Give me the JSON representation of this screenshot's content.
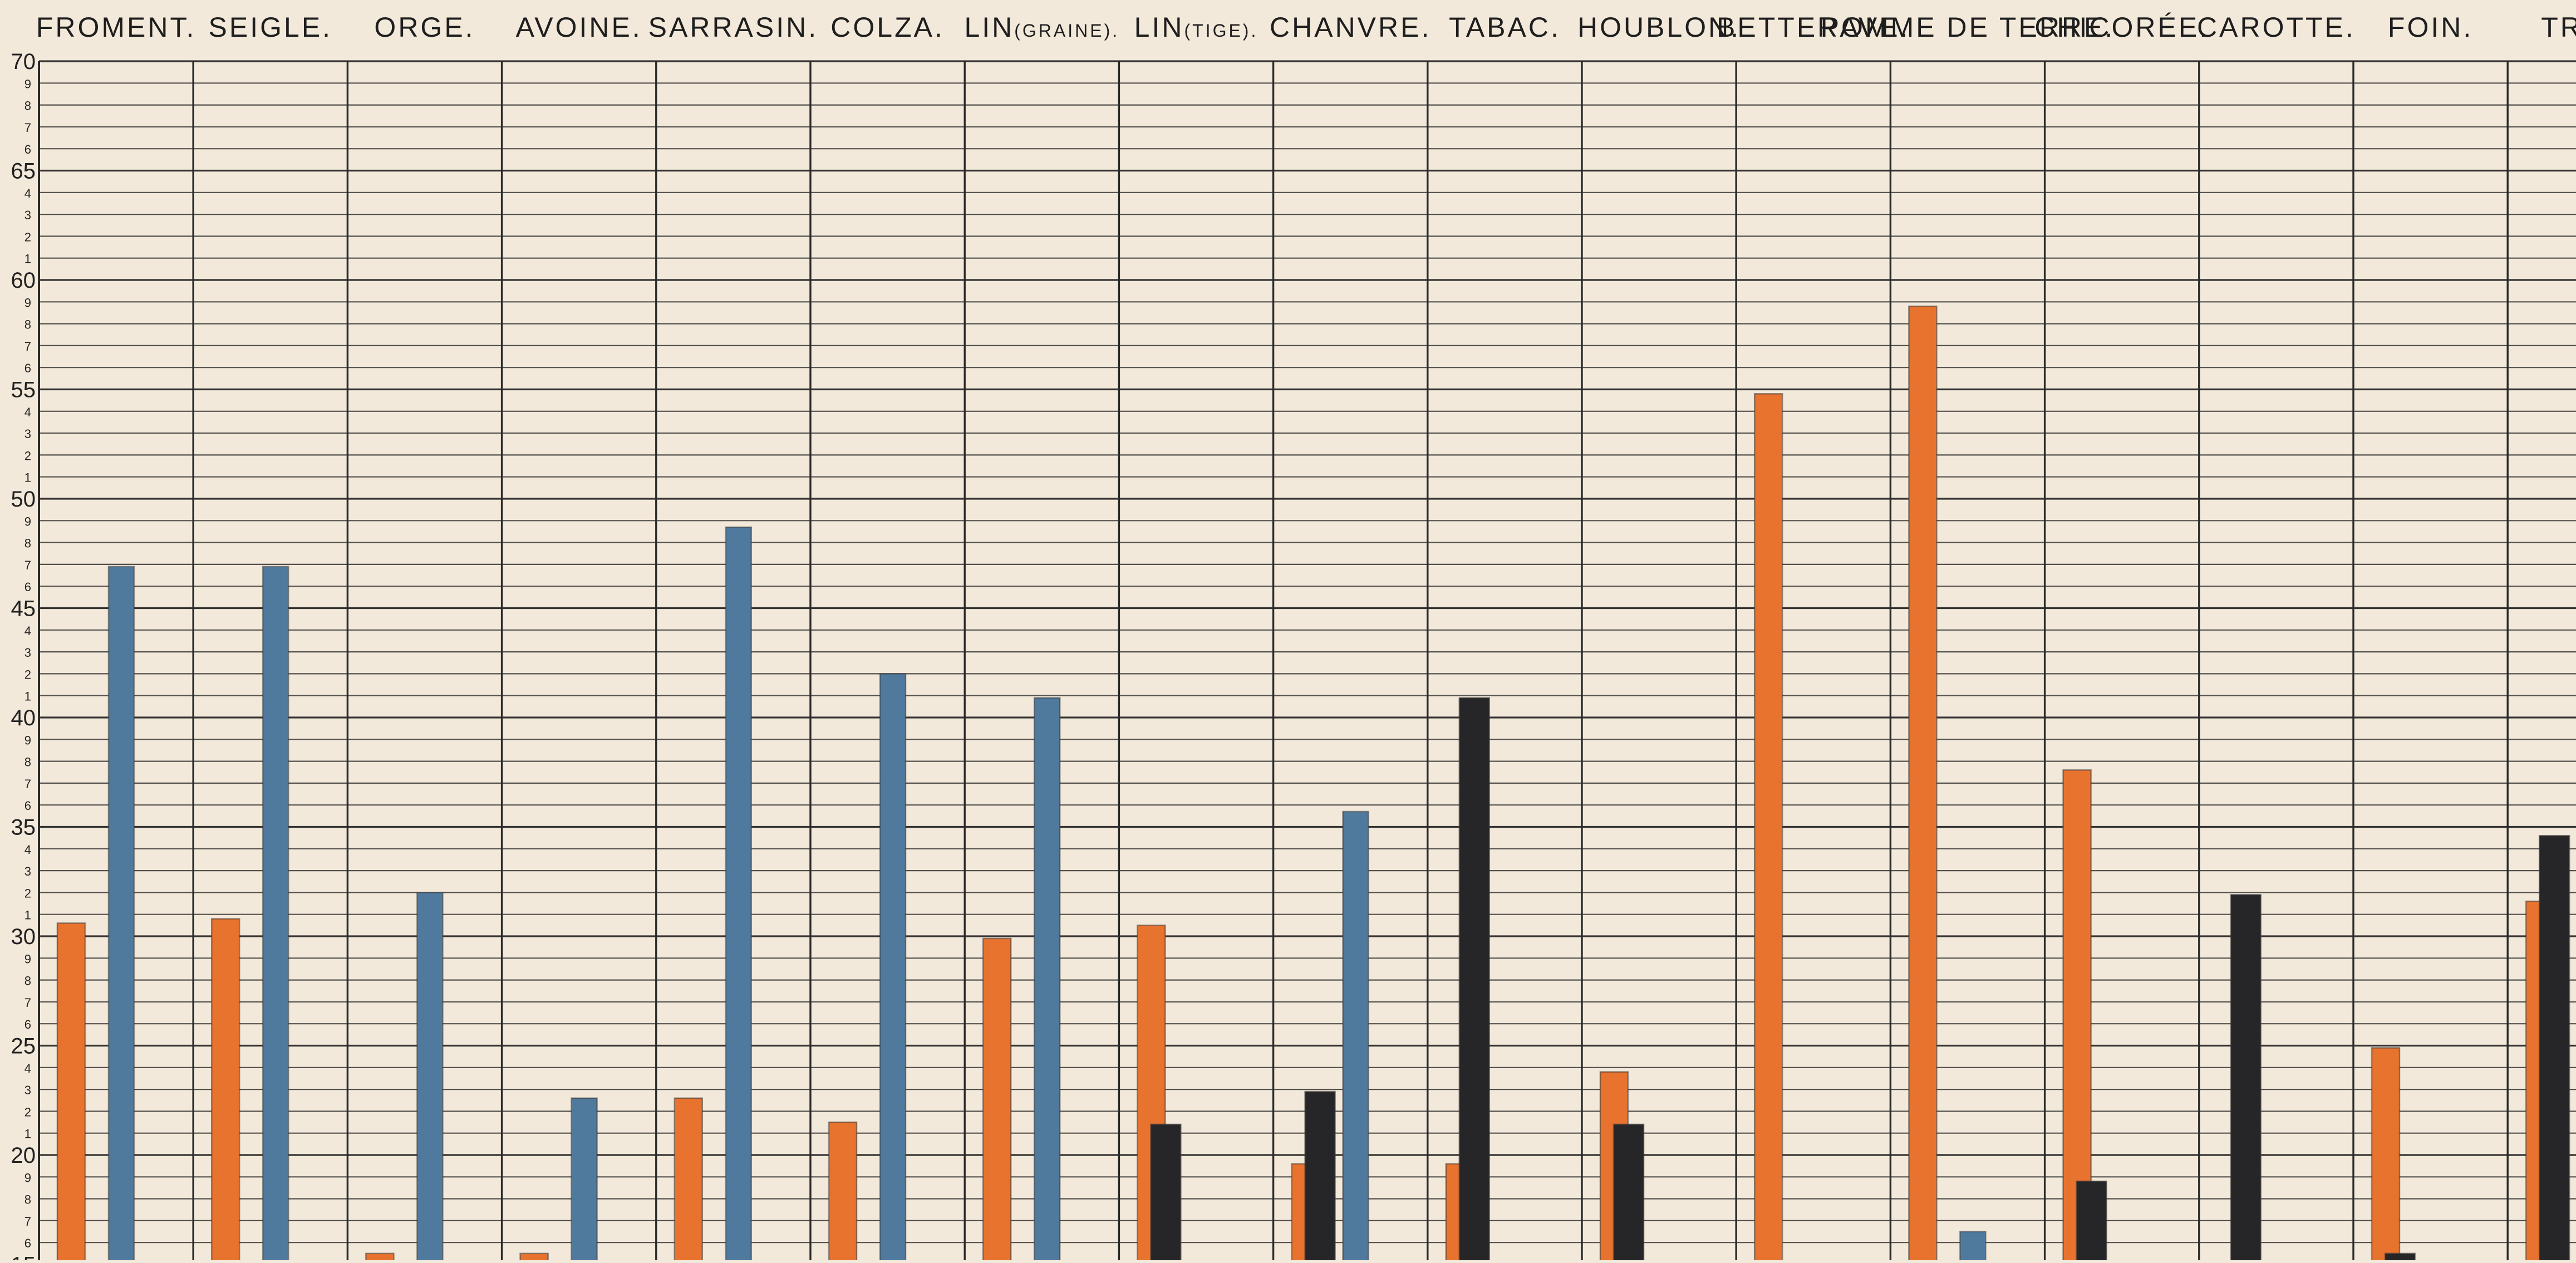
{
  "chart_data": {
    "type": "bar",
    "title": "",
    "xlabel": "",
    "ylabel": "",
    "ylim": [
      15,
      70
    ],
    "y_major_ticks": [
      20,
      25,
      30,
      35,
      40,
      45,
      50,
      55,
      60,
      65,
      70
    ],
    "y_minor_tick_labels": [
      "1",
      "2",
      "3",
      "4",
      "5",
      "6",
      "7",
      "8",
      "9"
    ],
    "grid": true,
    "legend": "none",
    "colors": {
      "blue": "#4f7a9e",
      "orange": "#e8732e",
      "black": "#262628",
      "grid": "#2a2a2a",
      "paper": "#f3e9da"
    },
    "categories": [
      {
        "label": "FROMENT.",
        "main": "FROMENT.",
        "small": ""
      },
      {
        "label": "SEIGLE.",
        "main": "SEIGLE.",
        "small": ""
      },
      {
        "label": "ORGE.",
        "main": "ORGE.",
        "small": ""
      },
      {
        "label": "AVOINE.",
        "main": "AVOINE.",
        "small": ""
      },
      {
        "label": "SARRASIN.",
        "main": "SARRASIN.",
        "small": ""
      },
      {
        "label": "COLZA.",
        "main": "COLZA.",
        "small": ""
      },
      {
        "label": "LIN(GRAINE).",
        "main": "LIN",
        "small": "(GRAINE)."
      },
      {
        "label": "LIN(TIGE).",
        "main": "LIN",
        "small": "(TIGE)."
      },
      {
        "label": "CHANVRE.",
        "main": "CHANVRE.",
        "small": ""
      },
      {
        "label": "TABAC.",
        "main": "TABAC.",
        "small": ""
      },
      {
        "label": "HOUBLON.",
        "main": "HOUBLON.",
        "small": ""
      },
      {
        "label": "BETTERAVE.",
        "main": "BETTERAVE.",
        "small": ""
      },
      {
        "label": "POMME DE TERRE.",
        "main": "POMME DE TERRE.",
        "small": ""
      },
      {
        "label": "CHICORÉE.",
        "main": "CHICORÉE.",
        "small": ""
      },
      {
        "label": "CAROTTE.",
        "main": "CAROTTE.",
        "small": ""
      },
      {
        "label": "FOIN.",
        "main": "FOIN.",
        "small": ""
      },
      {
        "label": "TR",
        "main": "TR",
        "small": ""
      }
    ],
    "bars": [
      {
        "category": 0,
        "slot": 0,
        "color": "orange",
        "value": 30.6
      },
      {
        "category": 0,
        "slot": 2,
        "color": "blue",
        "value": 46.9
      },
      {
        "category": 1,
        "slot": 0,
        "color": "orange",
        "value": 30.8
      },
      {
        "category": 1,
        "slot": 2,
        "color": "blue",
        "value": 46.9
      },
      {
        "category": 2,
        "slot": 0,
        "color": "orange",
        "value": 15.5
      },
      {
        "category": 2,
        "slot": 2,
        "color": "blue",
        "value": 32.0
      },
      {
        "category": 3,
        "slot": 0,
        "color": "orange",
        "value": 15.5
      },
      {
        "category": 3,
        "slot": 2,
        "color": "blue",
        "value": 22.6
      },
      {
        "category": 4,
        "slot": 0,
        "color": "orange",
        "value": 22.6
      },
      {
        "category": 4,
        "slot": 2,
        "color": "blue",
        "value": 48.7
      },
      {
        "category": 5,
        "slot": 0,
        "color": "orange",
        "value": 21.5
      },
      {
        "category": 5,
        "slot": 2,
        "color": "blue",
        "value": 42.0
      },
      {
        "category": 6,
        "slot": 0,
        "color": "orange",
        "value": 29.9
      },
      {
        "category": 6,
        "slot": 2,
        "color": "blue",
        "value": 40.9
      },
      {
        "category": 7,
        "slot": 0,
        "color": "orange",
        "value": 30.5
      },
      {
        "category": 7,
        "slot": 1,
        "color": "black",
        "value": 21.4
      },
      {
        "category": 8,
        "slot": 0,
        "color": "orange",
        "value": 19.6
      },
      {
        "category": 8,
        "slot": 1,
        "color": "black",
        "value": 22.9
      },
      {
        "category": 8,
        "slot": 2,
        "color": "blue",
        "value": 35.7
      },
      {
        "category": 9,
        "slot": 0,
        "color": "orange",
        "value": 19.6
      },
      {
        "category": 9,
        "slot": 1,
        "color": "black",
        "value": 40.9
      },
      {
        "category": 10,
        "slot": 0,
        "color": "orange",
        "value": 23.8
      },
      {
        "category": 10,
        "slot": 1,
        "color": "black",
        "value": 21.4
      },
      {
        "category": 11,
        "slot": 0,
        "color": "orange",
        "value": 54.8
      },
      {
        "category": 12,
        "slot": 0,
        "color": "orange",
        "value": 58.8
      },
      {
        "category": 12,
        "slot": 2,
        "color": "blue",
        "value": 16.5
      },
      {
        "category": 13,
        "slot": 0,
        "color": "orange",
        "value": 37.6
      },
      {
        "category": 13,
        "slot": 1,
        "color": "black",
        "value": 18.8
      },
      {
        "category": 14,
        "slot": 1,
        "color": "black",
        "value": 31.9
      },
      {
        "category": 15,
        "slot": 0,
        "color": "orange",
        "value": 24.9
      },
      {
        "category": 15,
        "slot": 1,
        "color": "black",
        "value": 15.5
      },
      {
        "category": 16,
        "slot": 0,
        "color": "orange",
        "value": 31.6
      },
      {
        "category": 16,
        "slot": 1,
        "color": "black",
        "value": 34.6
      }
    ]
  }
}
